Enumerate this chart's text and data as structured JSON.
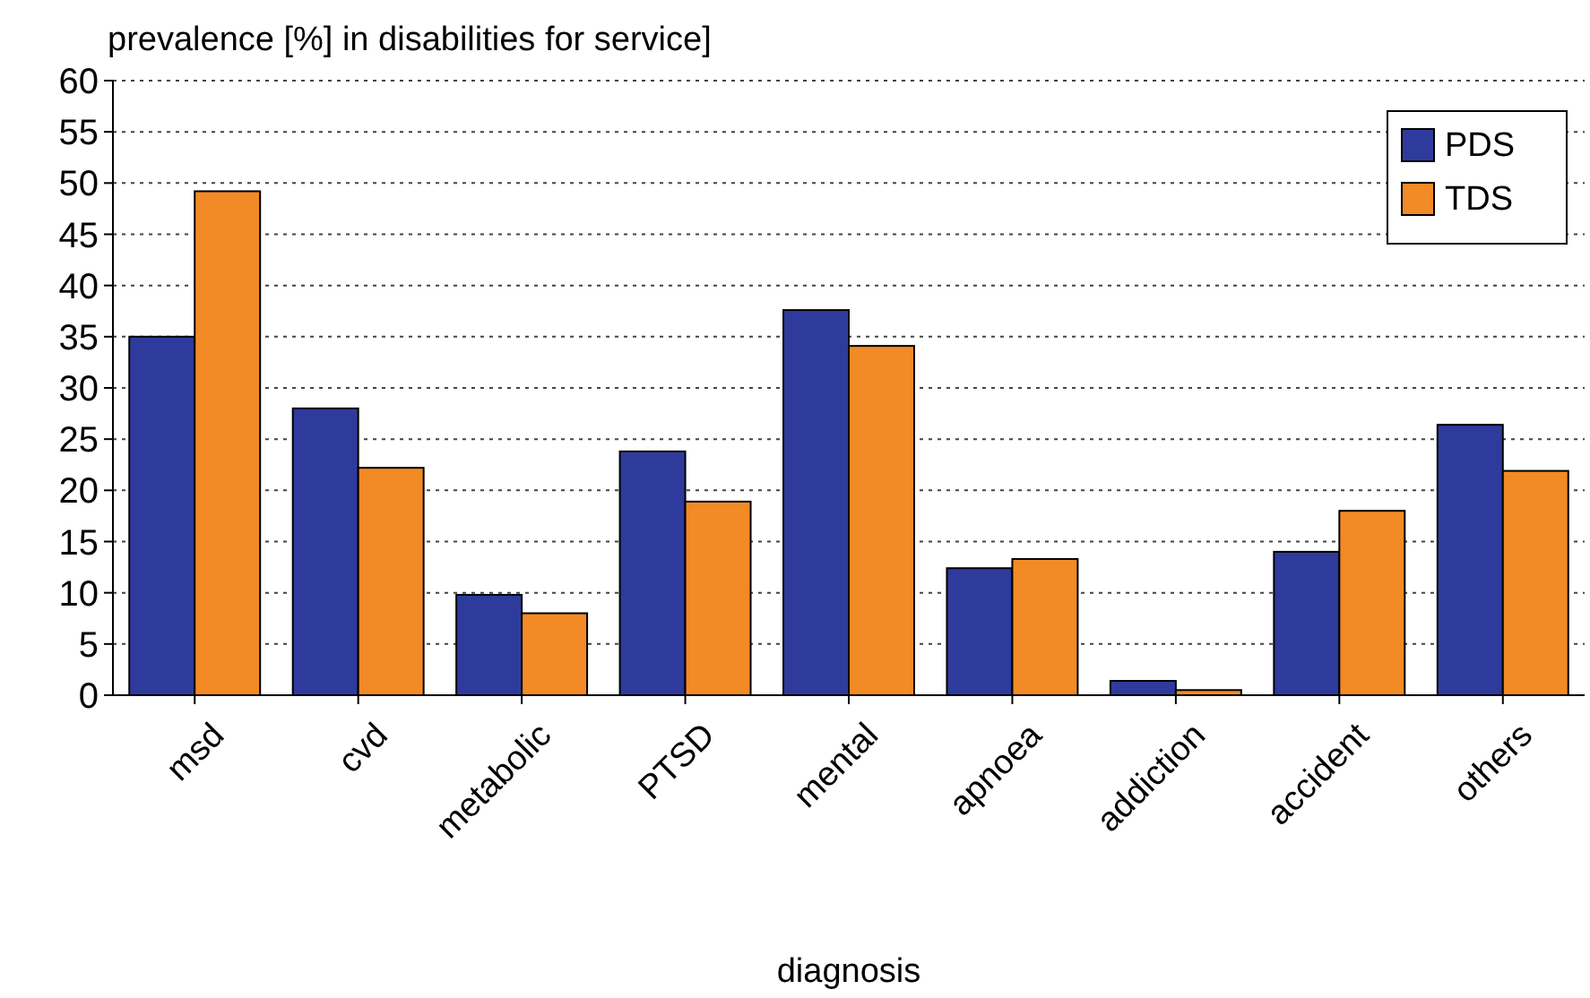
{
  "chart_data": {
    "type": "bar",
    "title": "prevalence [%] in disabilities for service]",
    "xlabel": "diagnosis",
    "categories": [
      "msd",
      "cvd",
      "metabolic",
      "PTSD",
      "mental",
      "apnoea",
      "addiction",
      "accident",
      "others"
    ],
    "series": [
      {
        "name": "PDS",
        "color": "#2e3b9c",
        "values": [
          35,
          28,
          9.8,
          23.8,
          37.6,
          12.4,
          1.4,
          14,
          26.4
        ]
      },
      {
        "name": "TDS",
        "color": "#f28a26",
        "values": [
          49.2,
          22.2,
          8,
          18.9,
          34.1,
          13.3,
          0.5,
          18,
          21.9
        ]
      }
    ],
    "ylim": [
      0,
      60
    ],
    "yticks": [
      0,
      5,
      10,
      15,
      20,
      25,
      30,
      35,
      40,
      45,
      50,
      55,
      60
    ],
    "grid": "y",
    "legend": "top right"
  }
}
